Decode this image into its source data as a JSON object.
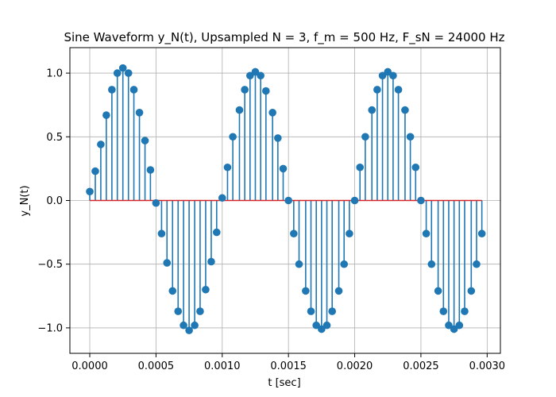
{
  "chart_data": {
    "type": "stem",
    "title": "Sine Waveform y_N(t), Upsampled N = 3, f_m = 500 Hz, F_sN = 24000 Hz",
    "xlabel": "t [sec]",
    "ylabel": "y_N(t)",
    "xlim": [
      -0.00015,
      0.0031
    ],
    "ylim": [
      -1.2,
      1.2
    ],
    "xticks": [
      0.0,
      0.0005,
      0.001,
      0.0015,
      0.002,
      0.0025,
      0.003
    ],
    "xtick_labels": [
      "0.0000",
      "0.0005",
      "0.0010",
      "0.0015",
      "0.0020",
      "0.0025",
      "0.0030"
    ],
    "yticks": [
      -1.0,
      -0.5,
      0.0,
      0.5,
      1.0
    ],
    "ytick_labels": [
      "−1.0",
      "−0.5",
      "0.0",
      "0.5",
      "1.0"
    ],
    "grid": true,
    "colors": {
      "stem": "#1f77b4",
      "baseline": "#d62728"
    },
    "x": [
      0.0,
      4.17e-05,
      8.33e-05,
      0.000125,
      0.000167,
      0.000208,
      0.00025,
      0.000292,
      0.000333,
      0.000375,
      0.000417,
      0.000458,
      0.0005,
      0.000542,
      0.000583,
      0.000625,
      0.000667,
      0.000708,
      0.00075,
      0.000792,
      0.000833,
      0.000875,
      0.000917,
      0.000958,
      0.001,
      0.00104,
      0.00108,
      0.00113,
      0.00117,
      0.00121,
      0.00125,
      0.00129,
      0.00133,
      0.00138,
      0.00142,
      0.00146,
      0.0015,
      0.00154,
      0.00158,
      0.00163,
      0.00167,
      0.00171,
      0.00175,
      0.00179,
      0.00183,
      0.00188,
      0.00192,
      0.00196,
      0.002,
      0.00204,
      0.00208,
      0.00213,
      0.00217,
      0.00221,
      0.00225,
      0.00229,
      0.00233,
      0.00238,
      0.00242,
      0.00246,
      0.0025,
      0.00254,
      0.00258,
      0.00263,
      0.00267,
      0.00271,
      0.00275,
      0.00279,
      0.00283,
      0.00288,
      0.00292,
      0.00296
    ],
    "y": [
      0.07,
      0.23,
      0.44,
      0.67,
      0.87,
      1.0,
      1.04,
      1.0,
      0.87,
      0.69,
      0.47,
      0.24,
      -0.02,
      -0.26,
      -0.49,
      -0.71,
      -0.87,
      -0.98,
      -1.02,
      -0.98,
      -0.87,
      -0.7,
      -0.48,
      -0.25,
      0.02,
      0.26,
      0.5,
      0.71,
      0.87,
      0.98,
      1.01,
      0.98,
      0.86,
      0.69,
      0.49,
      0.25,
      0.0,
      -0.26,
      -0.5,
      -0.71,
      -0.87,
      -0.98,
      -1.01,
      -0.98,
      -0.87,
      -0.71,
      -0.5,
      -0.26,
      0.0,
      0.26,
      0.5,
      0.71,
      0.87,
      0.98,
      1.01,
      0.98,
      0.87,
      0.71,
      0.5,
      0.26,
      0.0,
      -0.26,
      -0.5,
      -0.71,
      -0.87,
      -0.98,
      -1.01,
      -0.98,
      -0.87,
      -0.71,
      -0.5,
      -0.26
    ]
  }
}
